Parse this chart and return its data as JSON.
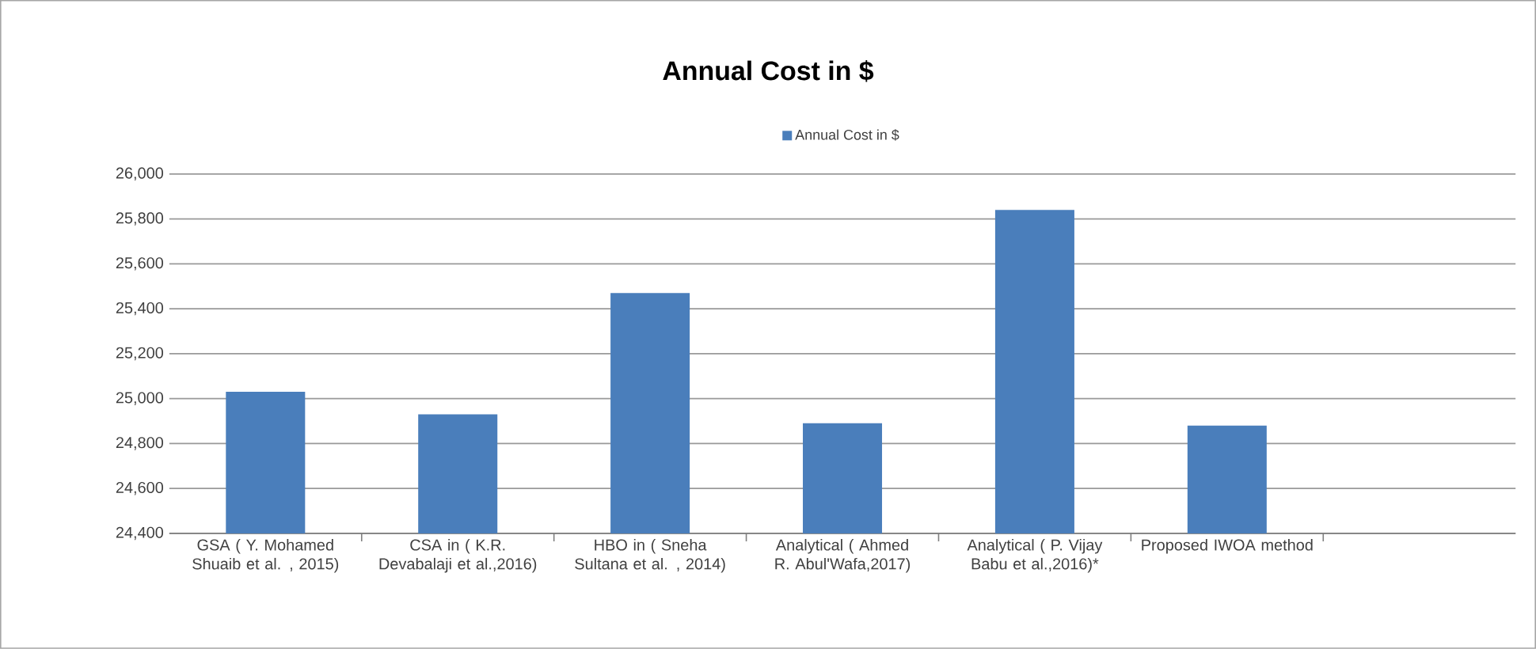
{
  "chart_data": {
    "type": "bar",
    "title": "Annual Cost  in $",
    "categories": [
      "GSA ( Y. Mohamed Shuaib et al. , 2015)",
      "CSA in ( K.R. Devabalaji et al.,2016)",
      "HBO in ( Sneha Sultana et al. , 2014)",
      "Analytical ( Ahmed R. Abul'Wafa,2017)",
      "Analytical ( P. Vijay Babu et al.,2016)*",
      "Proposed IWOA method",
      null
    ],
    "series": [
      {
        "name": "Annual Cost  in $",
        "color": "#4a7ebb",
        "values": [
          25030,
          24930,
          25470,
          24890,
          25840,
          24880,
          null
        ]
      }
    ],
    "ylim": [
      24400,
      26000
    ],
    "yticks": [
      {
        "value": 24400,
        "label": "24,400"
      },
      {
        "value": 24600,
        "label": "24,600"
      },
      {
        "value": 24800,
        "label": "24,800"
      },
      {
        "value": 25000,
        "label": "25,000"
      },
      {
        "value": 25200,
        "label": "25,200"
      },
      {
        "value": 25400,
        "label": "25,400"
      },
      {
        "value": 25600,
        "label": "25,600"
      },
      {
        "value": 25800,
        "label": "25,800"
      },
      {
        "value": 26000,
        "label": "26,000"
      }
    ],
    "grid": "y",
    "legend": "top"
  }
}
